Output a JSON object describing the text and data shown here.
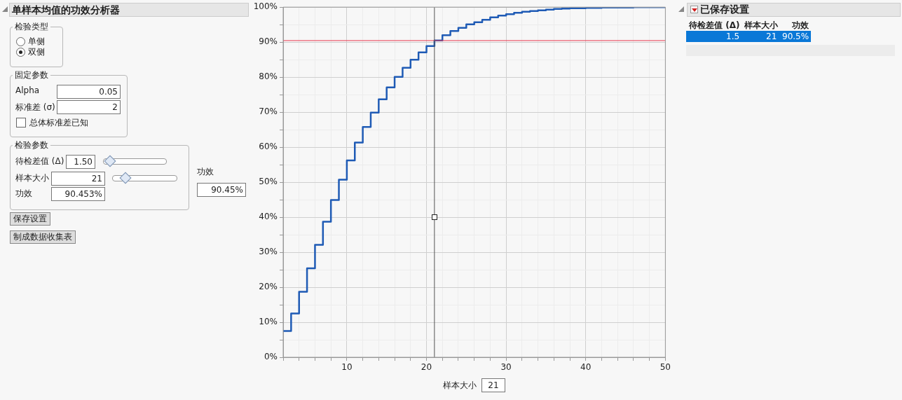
{
  "chart_data": {
    "type": "step",
    "title": "单样本均值的功效分析器",
    "xlabel": "样本大小",
    "x": [
      2,
      3,
      4,
      5,
      6,
      7,
      8,
      9,
      10,
      11,
      12,
      13,
      14,
      15,
      16,
      17,
      18,
      19,
      20,
      21,
      22,
      23,
      24,
      25,
      26,
      27,
      28,
      29,
      30,
      31,
      32,
      33,
      34,
      35,
      36,
      37,
      38,
      39,
      40,
      41,
      42,
      43,
      44,
      45,
      46,
      47,
      48,
      49,
      50
    ],
    "series": [
      {
        "color": "#1f5bb5",
        "values": [
          7.5,
          12.5,
          18.7,
          25.4,
          32.1,
          38.7,
          44.9,
          50.7,
          56.2,
          61.3,
          65.8,
          69.9,
          73.7,
          77.1,
          80.1,
          82.7,
          85.0,
          87.1,
          88.9,
          90.5,
          92.0,
          93.2,
          94.1,
          95.1,
          95.7,
          96.4,
          97.1,
          97.6,
          98.0,
          98.4,
          98.7,
          98.9,
          99.1,
          99.3,
          99.5,
          99.6,
          99.7,
          99.7,
          99.8,
          99.8,
          99.9,
          99.9,
          99.9,
          99.9,
          100,
          100,
          100,
          100,
          100
        ]
      }
    ],
    "xlim": [
      2,
      50
    ],
    "xticks": [
      {
        "value": 2,
        "label": null
      },
      {
        "value": 4,
        "label": null
      },
      {
        "value": 6,
        "label": null
      },
      {
        "value": 8,
        "label": null
      },
      10,
      {
        "value": 12,
        "label": null
      },
      {
        "value": 14,
        "label": null
      },
      {
        "value": 16,
        "label": null
      },
      {
        "value": 18,
        "label": null
      },
      20,
      {
        "value": 22,
        "label": null
      },
      {
        "value": 24,
        "label": null
      },
      {
        "value": 26,
        "label": null
      },
      {
        "value": 28,
        "label": null
      },
      30,
      {
        "value": 32,
        "label": null
      },
      {
        "value": 34,
        "label": null
      },
      {
        "value": 36,
        "label": null
      },
      {
        "value": 38,
        "label": null
      },
      40,
      {
        "value": 42,
        "label": null
      },
      {
        "value": 44,
        "label": null
      },
      {
        "value": 46,
        "label": null
      },
      {
        "value": 48,
        "label": null
      },
      50
    ],
    "ylim": [
      0,
      100
    ],
    "yticks": [
      {
        "value": 0,
        "label": "0%"
      },
      {
        "value": 5,
        "label": null
      },
      {
        "value": 10,
        "label": "10%"
      },
      {
        "value": 15,
        "label": null
      },
      {
        "value": 20,
        "label": "20%"
      },
      {
        "value": 25,
        "label": null
      },
      {
        "value": 30,
        "label": "30%"
      },
      {
        "value": 35,
        "label": null
      },
      {
        "value": 40,
        "label": "40%"
      },
      {
        "value": 45,
        "label": null
      },
      {
        "value": 50,
        "label": "50%"
      },
      {
        "value": 55,
        "label": null
      },
      {
        "value": 60,
        "label": "60%"
      },
      {
        "value": 65,
        "label": null
      },
      {
        "value": 70,
        "label": "70%"
      },
      {
        "value": 75,
        "label": null
      },
      {
        "value": 80,
        "label": "80%"
      },
      {
        "value": 85,
        "label": null
      },
      {
        "value": 90,
        "label": "90%"
      },
      {
        "value": 95,
        "label": null
      },
      {
        "value": 100,
        "label": "100%"
      }
    ],
    "grid": true,
    "legend": false,
    "marker": "none",
    "line_style": "solid",
    "ref_lines": [
      {
        "axis": "y",
        "value": 90.45,
        "color": "#e8384f"
      },
      {
        "axis": "x",
        "value": 21,
        "color": "#555555"
      }
    ],
    "annotations": [
      "检验类型",
      "单侧",
      "双侧",
      "固定参数",
      "Alpha",
      "0.05",
      "标准差 (σ)",
      "2",
      "总体标准差已知",
      "检验参数",
      "待检差值 (Δ)",
      "1.50",
      "样本大小",
      "21",
      "功效",
      "90.453%",
      "功效",
      "90.45%",
      "保存设置",
      "制成数据收集表",
      "已保存设置",
      "待检差值 (Δ)",
      "样本大小",
      "功效",
      "1.5",
      "21",
      "90.5%",
      "21"
    ]
  }
}
